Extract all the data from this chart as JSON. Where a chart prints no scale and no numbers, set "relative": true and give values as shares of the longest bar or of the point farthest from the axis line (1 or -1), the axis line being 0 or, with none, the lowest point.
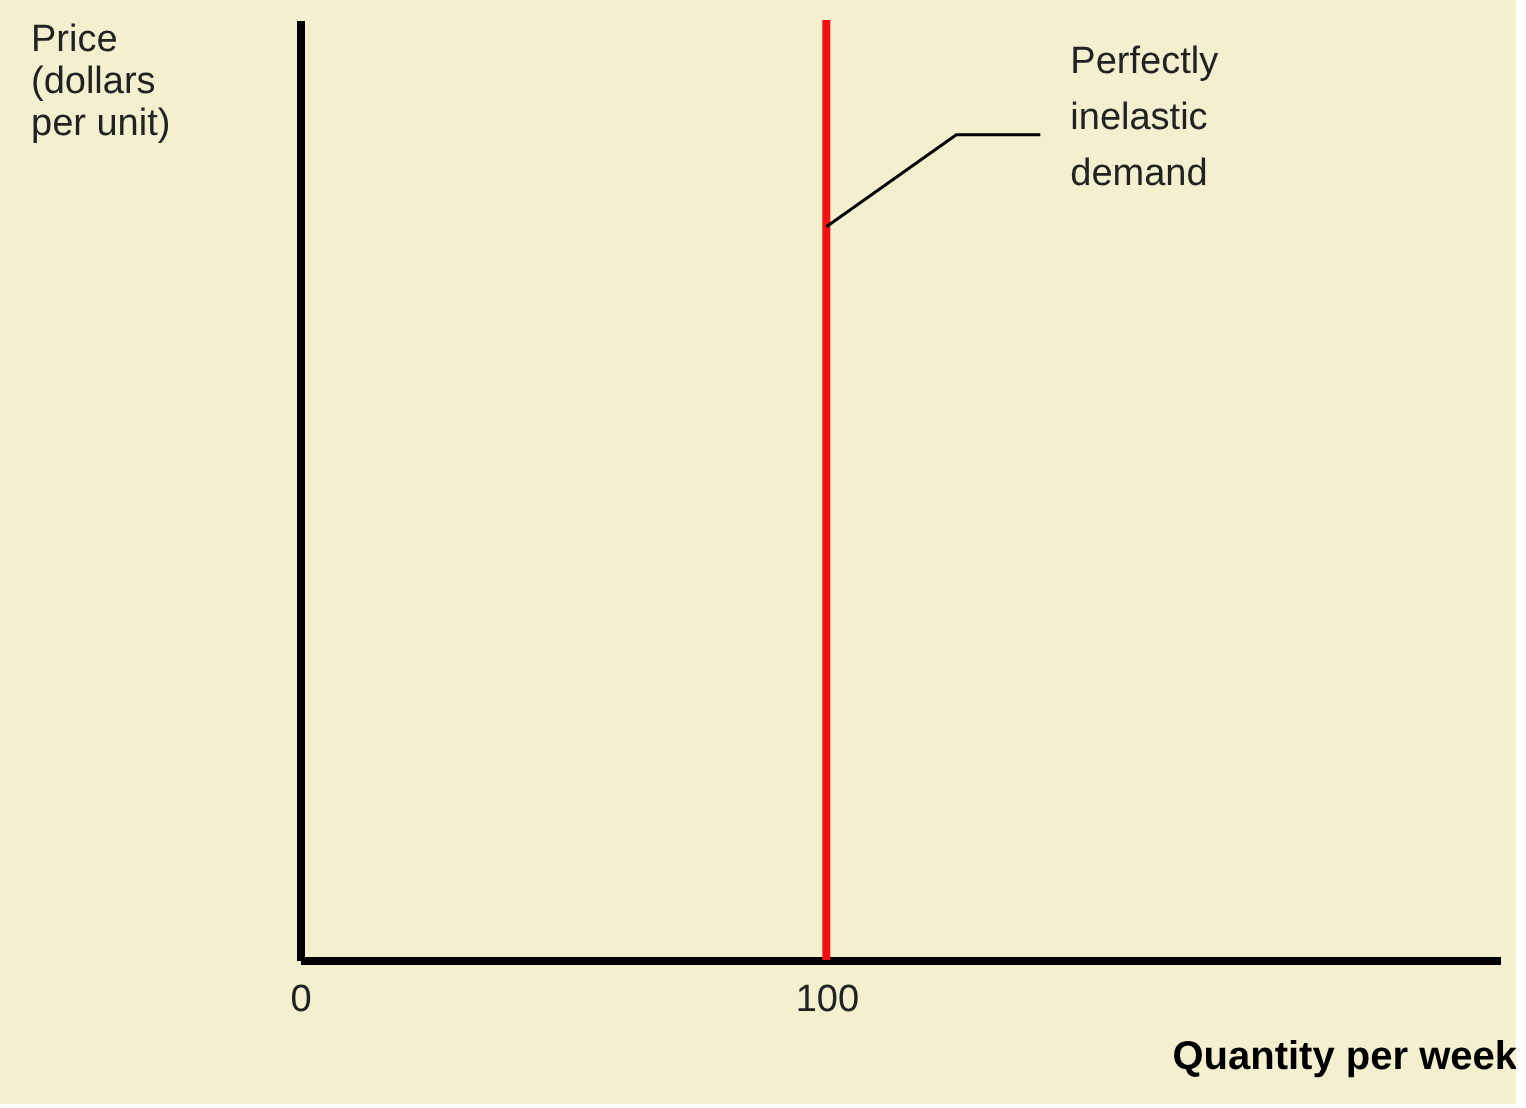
{
  "chart_data": {
    "type": "line",
    "xlabel": "Quantity per week",
    "ylabel": "Price\n(dollars\nper unit)",
    "x": [
      100,
      100
    ],
    "series": [
      {
        "color": "#ee1111",
        "values": [
          0,
          1
        ]
      }
    ],
    "relative": true,
    "xlim": [
      0,
      228
    ],
    "xticks": [
      0,
      100
    ],
    "tick_labels": "x",
    "grid": false,
    "annotations": [
      {
        "text": "Perfectly\ninelastic\ndemand",
        "x": 100,
        "y": 0.78
      }
    ]
  }
}
